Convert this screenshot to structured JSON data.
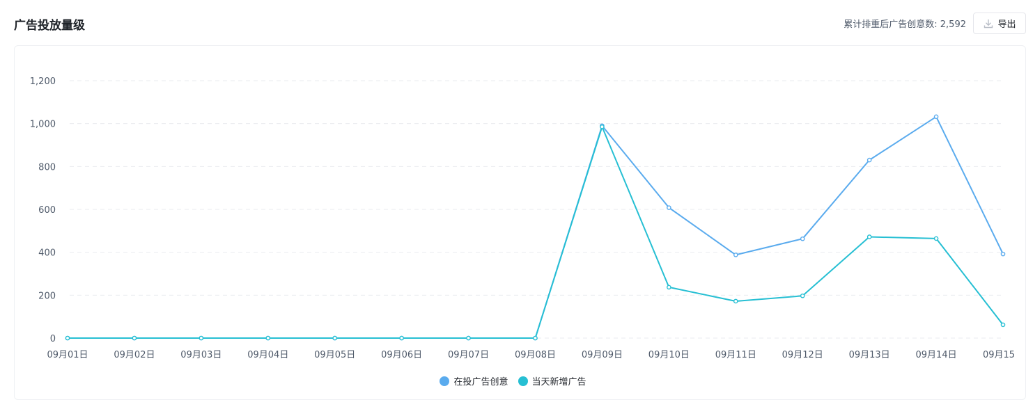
{
  "header": {
    "title": "广告投放量级",
    "stat_label": "累计排重后广告创意数:",
    "stat_value": "2,592",
    "export_label": "导出",
    "export_icon": "download-icon"
  },
  "colors": {
    "series1": "#5aabee",
    "series2": "#26bfd3",
    "grid": "#e9ebef"
  },
  "chart_data": {
    "type": "line",
    "title": "",
    "xlabel": "",
    "ylabel": "",
    "x": [
      "09月01日",
      "09月02日",
      "09月03日",
      "09月04日",
      "09月05日",
      "09月06日",
      "09月07日",
      "09月08日",
      "09月09日",
      "09月10日",
      "09月11日",
      "09月12日",
      "09月13日",
      "09月14日",
      "09月15"
    ],
    "ylim": [
      0,
      1200
    ],
    "yticks": [
      "0",
      "200",
      "400",
      "600",
      "800",
      "1,000",
      "1,200"
    ],
    "grid": true,
    "legend_position": "bottom-center",
    "series": [
      {
        "name": "在投广告创意",
        "values": [
          0,
          0,
          0,
          0,
          0,
          0,
          0,
          0,
          990,
          608,
          388,
          463,
          830,
          1032,
          392
        ]
      },
      {
        "name": "当天新增广告",
        "values": [
          0,
          0,
          0,
          0,
          0,
          0,
          0,
          0,
          985,
          237,
          172,
          197,
          472,
          464,
          62
        ]
      }
    ]
  }
}
